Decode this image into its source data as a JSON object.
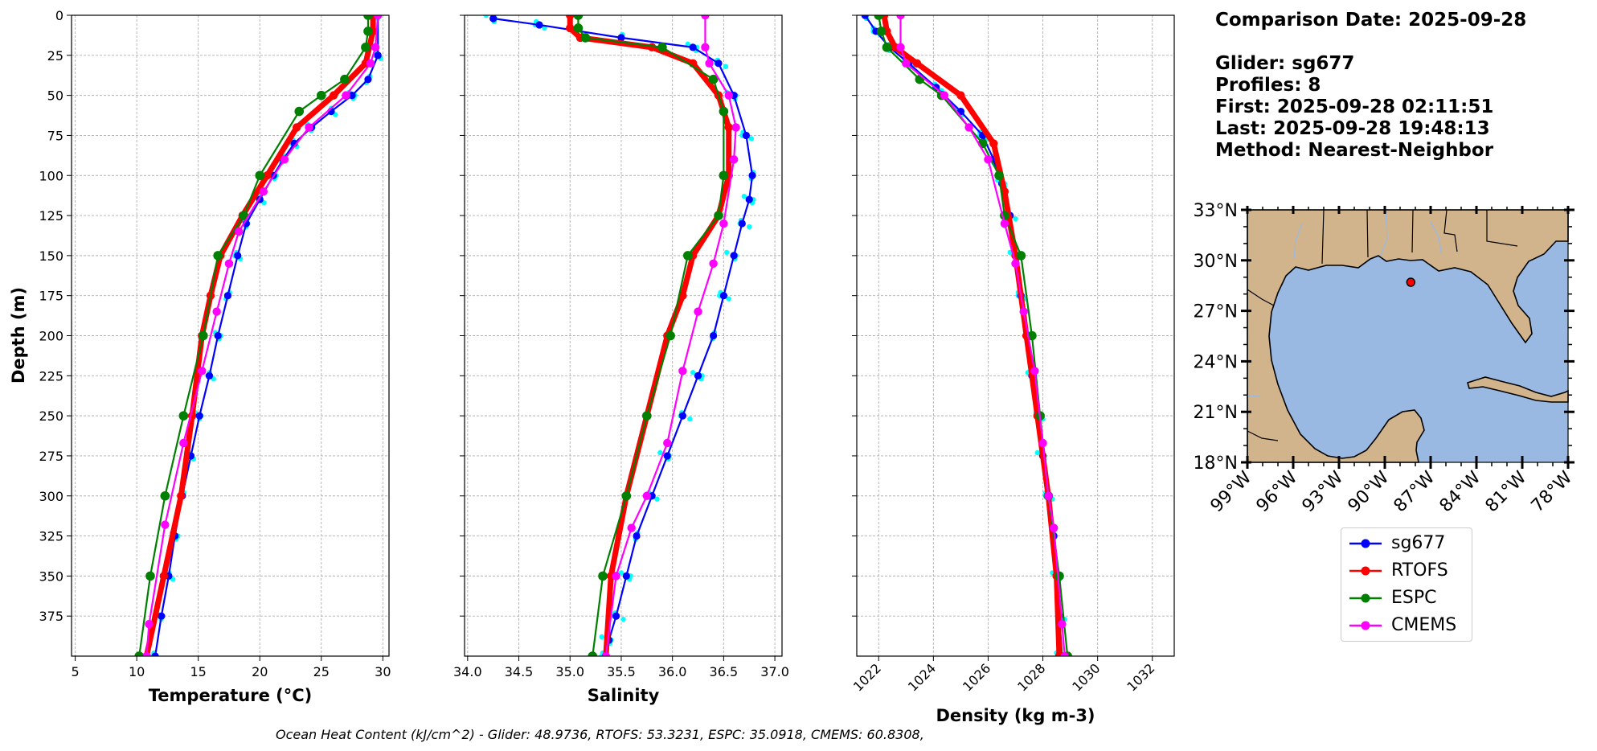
{
  "info": {
    "comparison_date": "Comparison Date: 2025-09-28",
    "glider": "Glider: sg677",
    "profiles": "Profiles: 8",
    "first": "First: 2025-09-28 02:11:51",
    "last": "Last: 2025-09-28 19:48:13",
    "method": "Method: Nearest-Neighbor"
  },
  "footer": "Ocean Heat Content (kJ/cm^2) - Glider: 48.9736,  RTOFS: 53.3231,  ESPC: 35.0918,  CMEMS: 60.8308,",
  "colors": {
    "sg677": "#0000ff",
    "RTOFS": "#ff0000",
    "ESPC": "#008000",
    "CMEMS": "#ff00ff",
    "raw": "#00ffff",
    "land": "#d2b48c",
    "ocean": "#99b9e2"
  },
  "legend": [
    "sg677",
    "RTOFS",
    "ESPC",
    "CMEMS"
  ],
  "chart_data": [
    {
      "type": "line",
      "ylabel": "Depth (m)",
      "xlabel": "Temperature (°C)",
      "xlim": [
        4.7,
        30.5
      ],
      "ylim": [
        400,
        0
      ],
      "xticks": [
        "5",
        "10",
        "15",
        "20",
        "25",
        "30"
      ],
      "yticks": [
        "0",
        "25",
        "50",
        "75",
        "100",
        "125",
        "150",
        "175",
        "200",
        "225",
        "250",
        "275",
        "300",
        "325",
        "350",
        "375"
      ],
      "grid": true,
      "series": [
        {
          "name": "sg677",
          "x": [
            29.6,
            29.6,
            28.8,
            27.5,
            25.8,
            24.2,
            22.8,
            21.9,
            21.1,
            20.0,
            18.9,
            18.2,
            17.4,
            16.6,
            15.9,
            15.1,
            14.4,
            13.7,
            13.1,
            12.6,
            12.0,
            11.5
          ],
          "y": [
            0,
            25,
            40,
            50,
            60,
            70,
            80,
            90,
            100,
            115,
            130,
            150,
            175,
            200,
            225,
            250,
            275,
            300,
            325,
            350,
            375,
            400
          ]
        },
        {
          "name": "RTOFS",
          "x": [
            29.2,
            29.2,
            28.6,
            26.0,
            23.0,
            20.6,
            18.6,
            16.8,
            16.0,
            15.3,
            14.5,
            13.6,
            12.2,
            10.8
          ],
          "y": [
            0,
            10,
            30,
            50,
            70,
            100,
            125,
            150,
            175,
            200,
            250,
            300,
            350,
            400
          ]
        },
        {
          "name": "ESPC",
          "x": [
            28.8,
            28.8,
            28.6,
            26.9,
            25.0,
            23.2,
            20.0,
            18.7,
            16.6,
            15.4,
            13.8,
            12.3,
            11.1,
            10.2
          ],
          "y": [
            0,
            10,
            20,
            40,
            50,
            60,
            100,
            125,
            150,
            200,
            250,
            300,
            350,
            400
          ]
        },
        {
          "name": "CMEMS",
          "x": [
            29.6,
            29.4,
            29.0,
            27.0,
            24.0,
            22.0,
            20.3,
            18.3,
            17.5,
            16.5,
            15.3,
            13.8,
            12.3,
            11.0,
            10.8
          ],
          "y": [
            0,
            20,
            30,
            50,
            70,
            90,
            110,
            135,
            155,
            185,
            222,
            267,
            318,
            380,
            400
          ]
        }
      ]
    },
    {
      "type": "line",
      "xlabel": "Salinity",
      "xlim": [
        33.97,
        37.07
      ],
      "ylim": [
        400,
        0
      ],
      "xticks": [
        "34.0",
        "34.5",
        "35.0",
        "35.5",
        "36.0",
        "36.5",
        "37.0"
      ],
      "grid": true,
      "series": [
        {
          "name": "sg677",
          "x": [
            34.25,
            34.7,
            35.5,
            36.2,
            36.45,
            36.6,
            36.72,
            36.78,
            36.75,
            36.68,
            36.6,
            36.5,
            36.4,
            36.25,
            36.1,
            35.95,
            35.8,
            35.65,
            35.55,
            35.45,
            35.38,
            35.35
          ],
          "y": [
            2,
            6,
            14,
            20,
            30,
            50,
            75,
            100,
            115,
            130,
            150,
            175,
            200,
            225,
            250,
            275,
            300,
            325,
            350,
            375,
            390,
            400
          ]
        },
        {
          "name": "RTOFS",
          "x": [
            35.0,
            35.0,
            35.1,
            35.8,
            36.2,
            36.45,
            36.55,
            36.55,
            36.45,
            36.2,
            36.1,
            35.95,
            35.75,
            35.55,
            35.4,
            35.35
          ],
          "y": [
            0,
            8,
            14,
            20,
            30,
            50,
            70,
            100,
            125,
            150,
            175,
            200,
            250,
            300,
            350,
            400
          ]
        },
        {
          "name": "ESPC",
          "x": [
            35.08,
            35.08,
            35.15,
            35.9,
            36.4,
            36.5,
            36.5,
            36.45,
            36.15,
            35.98,
            35.75,
            35.55,
            35.32,
            35.22
          ],
          "y": [
            0,
            8,
            14,
            20,
            40,
            60,
            100,
            125,
            150,
            200,
            250,
            300,
            350,
            400
          ]
        },
        {
          "name": "CMEMS",
          "x": [
            36.32,
            36.32,
            36.36,
            36.55,
            36.62,
            36.6,
            36.5,
            36.4,
            36.25,
            36.1,
            35.95,
            35.75,
            35.6,
            35.45,
            35.35
          ],
          "y": [
            0,
            20,
            30,
            50,
            70,
            90,
            130,
            155,
            185,
            222,
            267,
            300,
            320,
            350,
            400
          ]
        }
      ]
    },
    {
      "type": "line",
      "xlabel": "Density (kg m-3)",
      "xlim": [
        1021.2,
        1032.8
      ],
      "ylim": [
        400,
        0
      ],
      "xticks": [
        "1022",
        "1024",
        "1026",
        "1028",
        "1030",
        "1032"
      ],
      "grid": true,
      "series": [
        {
          "name": "sg677",
          "x": [
            1021.5,
            1021.9,
            1022.4,
            1023.1,
            1024.1,
            1025.0,
            1025.8,
            1026.2,
            1026.5,
            1026.8,
            1027.0,
            1027.2,
            1027.4,
            1027.6,
            1027.8,
            1028.0,
            1028.2,
            1028.4,
            1028.5,
            1028.6,
            1028.7
          ],
          "y": [
            0,
            10,
            20,
            30,
            45,
            60,
            75,
            90,
            105,
            125,
            150,
            175,
            200,
            225,
            250,
            275,
            300,
            325,
            350,
            375,
            400
          ]
        },
        {
          "name": "RTOFS",
          "x": [
            1022.2,
            1022.3,
            1022.6,
            1023.4,
            1025.0,
            1026.2,
            1026.6,
            1027.0,
            1027.4,
            1027.8,
            1028.2,
            1028.5,
            1028.6
          ],
          "y": [
            0,
            10,
            20,
            30,
            50,
            80,
            110,
            150,
            200,
            250,
            300,
            350,
            400
          ]
        },
        {
          "name": "ESPC",
          "x": [
            1022.0,
            1022.1,
            1022.3,
            1023.5,
            1024.3,
            1025.8,
            1026.4,
            1026.6,
            1027.2,
            1027.6,
            1027.9,
            1028.2,
            1028.6,
            1028.9
          ],
          "y": [
            0,
            10,
            20,
            40,
            50,
            80,
            100,
            125,
            150,
            200,
            250,
            300,
            350,
            400
          ]
        },
        {
          "name": "CMEMS",
          "x": [
            1022.8,
            1022.8,
            1023.0,
            1024.4,
            1025.3,
            1026.0,
            1026.6,
            1027.0,
            1027.3,
            1027.7,
            1028.0,
            1028.2,
            1028.4,
            1028.7,
            1028.8
          ],
          "y": [
            0,
            20,
            30,
            50,
            70,
            90,
            130,
            155,
            185,
            222,
            267,
            300,
            320,
            380,
            400
          ]
        }
      ]
    }
  ],
  "map": {
    "xticks": [
      "99°W",
      "96°W",
      "93°W",
      "90°W",
      "87°W",
      "84°W",
      "81°W",
      "78°W"
    ],
    "yticks": [
      "33°N",
      "30°N",
      "27°N",
      "24°N",
      "21°N",
      "18°N"
    ],
    "lon_range": [
      -99,
      -78
    ],
    "lat_range": [
      18,
      33
    ],
    "marker": {
      "lon": -88.3,
      "lat": 28.7
    }
  }
}
